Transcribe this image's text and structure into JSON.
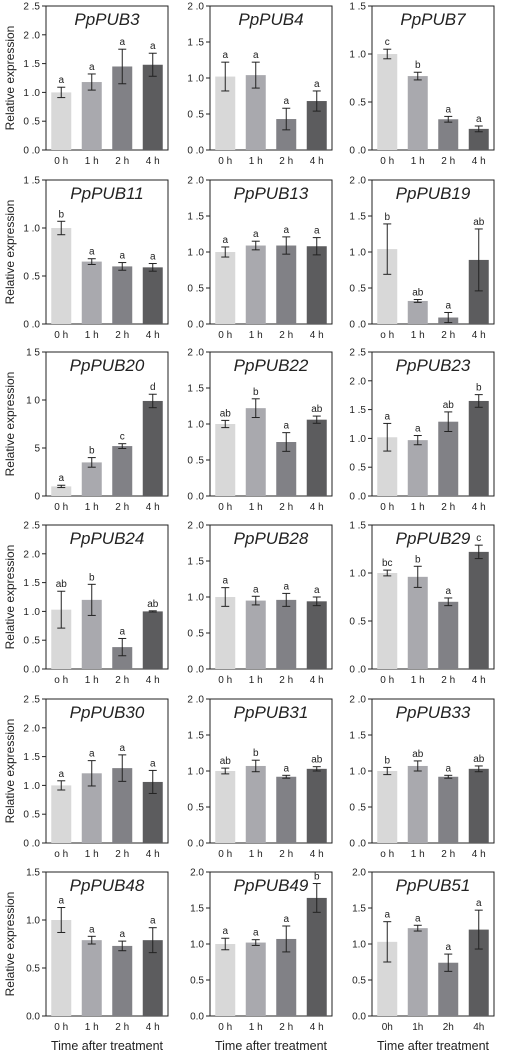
{
  "figure": {
    "ylabel": "Relative expression",
    "xlabel": "Time after treatment",
    "bar_colors": [
      "#d8d8d8",
      "#a9a9ae",
      "#818186",
      "#5c5c5e"
    ]
  },
  "chart_data": [
    {
      "type": "bar",
      "title": "PpPUB3",
      "categories": [
        "0 h",
        "1 h",
        "2 h",
        "4 h"
      ],
      "values": [
        1.0,
        1.18,
        1.45,
        1.48
      ],
      "errors": [
        0.09,
        0.14,
        0.3,
        0.2
      ],
      "letters": [
        "a",
        "a",
        "a",
        "a"
      ],
      "yticks": [
        "0 .0",
        "0 .5",
        "1 .0",
        "1 .5",
        "2 .0",
        "2 .5"
      ],
      "ylim": [
        0,
        2.5
      ],
      "xlabel": "",
      "ylabel": "Relative expression"
    },
    {
      "type": "bar",
      "title": "PpPUB4",
      "categories": [
        "0 h",
        "1 h",
        "2 h",
        "4 h"
      ],
      "values": [
        1.02,
        1.04,
        0.43,
        0.68
      ],
      "errors": [
        0.2,
        0.18,
        0.15,
        0.14
      ],
      "letters": [
        "a",
        "a",
        "a",
        "a"
      ],
      "yticks": [
        "0 .0",
        "0 .5",
        "1 .0",
        "1 .5",
        "2 .0"
      ],
      "ylim": [
        0,
        2.0
      ],
      "xlabel": "",
      "ylabel": ""
    },
    {
      "type": "bar",
      "title": "PpPUB7",
      "categories": [
        "0 h",
        "1 h",
        "2 h",
        "4 h"
      ],
      "values": [
        1.0,
        0.77,
        0.32,
        0.22
      ],
      "errors": [
        0.05,
        0.04,
        0.03,
        0.03
      ],
      "letters": [
        "c",
        "b",
        "a",
        "a"
      ],
      "yticks": [
        "0 .0",
        "0 .5",
        "1 .0",
        "1 .5"
      ],
      "ylim": [
        0,
        1.5
      ],
      "xlabel": "",
      "ylabel": ""
    },
    {
      "type": "bar",
      "title": "PpPUB11",
      "categories": [
        "0 h",
        "1 h",
        "2 h",
        "4 h"
      ],
      "values": [
        1.0,
        0.65,
        0.6,
        0.59
      ],
      "errors": [
        0.07,
        0.03,
        0.04,
        0.04
      ],
      "letters": [
        "b",
        "a",
        "a",
        "a"
      ],
      "yticks": [
        "0 .0",
        "0 .5",
        "1 .0",
        "1 .5"
      ],
      "ylim": [
        0,
        1.5
      ],
      "xlabel": "",
      "ylabel": "Relative expression"
    },
    {
      "type": "bar",
      "title": "PpPUB13",
      "categories": [
        "0 h",
        "1 h",
        "2 h",
        "4 h"
      ],
      "values": [
        1.0,
        1.09,
        1.09,
        1.08
      ],
      "errors": [
        0.07,
        0.06,
        0.12,
        0.12
      ],
      "letters": [
        "a",
        "a",
        "a",
        "a"
      ],
      "yticks": [
        "0 .0",
        "0 .5",
        "1 .0",
        "1 .5",
        "2 .0"
      ],
      "ylim": [
        0,
        2.0
      ],
      "xlabel": "",
      "ylabel": ""
    },
    {
      "type": "bar",
      "title": "PpPUB19",
      "categories": [
        "o h",
        "1 h",
        "2 h",
        "4 h"
      ],
      "values": [
        1.04,
        0.32,
        0.09,
        0.89
      ],
      "errors": [
        0.35,
        0.02,
        0.07,
        0.43
      ],
      "letters": [
        "b",
        "ab",
        "a",
        "ab"
      ],
      "yticks": [
        "0 .0",
        "0 .5",
        "1 .0",
        "1 .5",
        "2 .0"
      ],
      "ylim": [
        0,
        2.0
      ],
      "xlabel": "",
      "ylabel": ""
    },
    {
      "type": "bar",
      "title": "PpPUB20",
      "categories": [
        "0 h",
        "1 h",
        "2 h",
        "4 h"
      ],
      "values": [
        1.0,
        3.5,
        5.2,
        9.9
      ],
      "errors": [
        0.12,
        0.5,
        0.25,
        0.7
      ],
      "letters": [
        "a",
        "b",
        "c",
        "d"
      ],
      "yticks": [
        "0",
        "5",
        "1 0",
        "1 5"
      ],
      "ylim": [
        0,
        15
      ],
      "xlabel": "",
      "ylabel": "Relative expression"
    },
    {
      "type": "bar",
      "title": "PpPUB22",
      "categories": [
        "0 h",
        "1 h",
        "2 h",
        "4 h"
      ],
      "values": [
        1.0,
        1.22,
        0.75,
        1.06
      ],
      "errors": [
        0.05,
        0.13,
        0.13,
        0.05
      ],
      "letters": [
        "ab",
        "b",
        "a",
        "ab"
      ],
      "yticks": [
        "0 .0",
        "0 .5",
        "1 .0",
        "1 .5",
        "2 .0"
      ],
      "ylim": [
        0,
        2.0
      ],
      "xlabel": "",
      "ylabel": ""
    },
    {
      "type": "bar",
      "title": "PpPUB23",
      "categories": [
        "0 h",
        "1 h",
        "2 h",
        "4 h"
      ],
      "values": [
        1.02,
        0.97,
        1.29,
        1.65
      ],
      "errors": [
        0.24,
        0.08,
        0.17,
        0.11
      ],
      "letters": [
        "a",
        "a",
        "ab",
        "b"
      ],
      "yticks": [
        "0 .0",
        "0 .5",
        "1 .0",
        "1 .5",
        "2 .0",
        "2 .5"
      ],
      "ylim": [
        0,
        2.5
      ],
      "xlabel": "",
      "ylabel": ""
    },
    {
      "type": "bar",
      "title": "PpPUB24",
      "categories": [
        "o h",
        "1 h",
        "2 h",
        "4 h"
      ],
      "values": [
        1.03,
        1.2,
        0.38,
        1.0
      ],
      "errors": [
        0.32,
        0.27,
        0.15,
        0.01
      ],
      "letters": [
        "ab",
        "b",
        "a",
        "ab"
      ],
      "yticks": [
        "0 .0",
        "0 .5",
        "1 .0",
        "1 .5",
        "2 .0",
        "2 .5"
      ],
      "ylim": [
        0,
        2.5
      ],
      "xlabel": "",
      "ylabel": "Relative expression"
    },
    {
      "type": "bar",
      "title": "PpPUB28",
      "categories": [
        "0 h",
        "1 h",
        "2 h",
        "4 h"
      ],
      "values": [
        1.0,
        0.95,
        0.96,
        0.94
      ],
      "errors": [
        0.13,
        0.06,
        0.09,
        0.06
      ],
      "letters": [
        "a",
        "a",
        "a",
        "a"
      ],
      "yticks": [
        "0 .0",
        "0 .5",
        "1 .0",
        "1 .5",
        "2 .0"
      ],
      "ylim": [
        0,
        2.0
      ],
      "xlabel": "",
      "ylabel": ""
    },
    {
      "type": "bar",
      "title": "PpPUB29",
      "categories": [
        "0 h",
        "1 h",
        "2 h",
        "4 h"
      ],
      "values": [
        1.0,
        0.96,
        0.7,
        1.22
      ],
      "errors": [
        0.03,
        0.11,
        0.04,
        0.07
      ],
      "letters": [
        "bc",
        "b",
        "a",
        "c"
      ],
      "yticks": [
        "0 .0",
        "0 .5",
        "1 .0",
        "1 .5"
      ],
      "ylim": [
        0,
        1.5
      ],
      "xlabel": "",
      "ylabel": ""
    },
    {
      "type": "bar",
      "title": "PpPUB30",
      "categories": [
        "o h",
        "1 h",
        "2 h",
        "4 h"
      ],
      "values": [
        1.0,
        1.21,
        1.3,
        1.06
      ],
      "errors": [
        0.08,
        0.22,
        0.23,
        0.2
      ],
      "letters": [
        "a",
        "a",
        "a",
        "a"
      ],
      "yticks": [
        "0 .0",
        "0 .5",
        "1 .0",
        "1 .5",
        "2 .0",
        "2 .5"
      ],
      "ylim": [
        0,
        2.5
      ],
      "xlabel": "",
      "ylabel": "Relative expression"
    },
    {
      "type": "bar",
      "title": "PpPUB31",
      "categories": [
        "0 h",
        "1 h",
        "2 h",
        "4 h"
      ],
      "values": [
        1.0,
        1.07,
        0.92,
        1.03
      ],
      "errors": [
        0.04,
        0.08,
        0.02,
        0.03
      ],
      "letters": [
        "ab",
        "b",
        "a",
        "ab"
      ],
      "yticks": [
        "0 .0",
        "0 .5",
        "1 .0",
        "1 .5",
        "2 .0"
      ],
      "ylim": [
        0,
        2.0
      ],
      "xlabel": "",
      "ylabel": ""
    },
    {
      "type": "bar",
      "title": "PpPUB33",
      "categories": [
        "o h",
        "1 h",
        "2 h",
        "4 h"
      ],
      "values": [
        1.0,
        1.07,
        0.92,
        1.03
      ],
      "errors": [
        0.05,
        0.07,
        0.02,
        0.04
      ],
      "letters": [
        "b",
        "ab",
        "a",
        "ab"
      ],
      "yticks": [
        "0 .0",
        "0 .5",
        "1 .0",
        "1 .5",
        "2 .0"
      ],
      "ylim": [
        0,
        2.0
      ],
      "xlabel": "",
      "ylabel": ""
    },
    {
      "type": "bar",
      "title": "PpPUB48",
      "categories": [
        "0 h",
        "1 h",
        "2 h",
        "4 h"
      ],
      "values": [
        1.0,
        0.79,
        0.73,
        0.79
      ],
      "errors": [
        0.13,
        0.04,
        0.05,
        0.13
      ],
      "letters": [
        "a",
        "a",
        "a",
        "a"
      ],
      "yticks": [
        "0.0",
        "0.5",
        "1.0",
        "1.5"
      ],
      "ylim": [
        0,
        1.5
      ],
      "xlabel": "Time after treatment",
      "ylabel": "Relative expression"
    },
    {
      "type": "bar",
      "title": "PpPUB49",
      "categories": [
        "0 h",
        "1 h",
        "2 h",
        "4 h"
      ],
      "values": [
        1.0,
        1.02,
        1.07,
        1.64
      ],
      "errors": [
        0.08,
        0.04,
        0.18,
        0.2
      ],
      "letters": [
        "a",
        "a",
        "a",
        "b"
      ],
      "yticks": [
        "0.0",
        "0.5",
        "1.0",
        "1.5",
        "2.0"
      ],
      "ylim": [
        0,
        2.0
      ],
      "xlabel": "Time after treatment",
      "ylabel": ""
    },
    {
      "type": "bar",
      "title": "PpPUB51",
      "categories": [
        "0h",
        "1h",
        "2h",
        "4h"
      ],
      "values": [
        1.03,
        1.22,
        0.74,
        1.2
      ],
      "errors": [
        0.28,
        0.04,
        0.12,
        0.27
      ],
      "letters": [
        "a",
        "a",
        "a",
        "a"
      ],
      "yticks": [
        "0.0",
        "0.5",
        "1.0",
        "1.5",
        "2.0"
      ],
      "ylim": [
        0,
        2.0
      ],
      "xlabel": "Time after treatment",
      "ylabel": ""
    }
  ]
}
